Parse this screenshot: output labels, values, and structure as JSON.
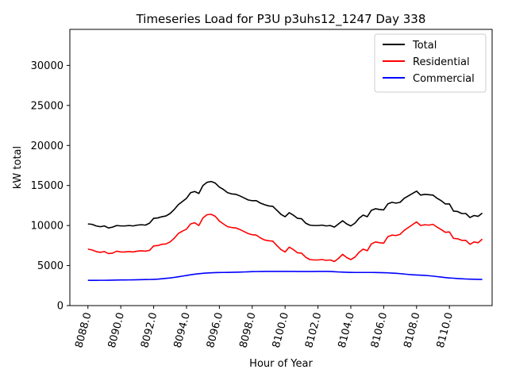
{
  "chart_data": {
    "type": "line",
    "title": "Timeseries Load for P3U p3uhs12_1247  Day 338",
    "xlabel": "Hour of Year",
    "ylabel": "kW total",
    "xlim": [
      8086.9,
      8112.6
    ],
    "ylim": [
      0,
      34500
    ],
    "xticks": [
      8088,
      8090,
      8092,
      8094,
      8096,
      8098,
      8100,
      8102,
      8104,
      8106,
      8108,
      8110
    ],
    "xtick_labels": [
      "8088.0",
      "8090.0",
      "8092.0",
      "8094.0",
      "8096.0",
      "8098.0",
      "8100.0",
      "8102.0",
      "8104.0",
      "8106.0",
      "8108.0",
      "8110.0"
    ],
    "yticks": [
      0,
      5000,
      10000,
      15000,
      20000,
      25000,
      30000
    ],
    "ytick_labels": [
      "0",
      "5000",
      "10000",
      "15000",
      "20000",
      "25000",
      "30000"
    ],
    "legend_position": "top-right",
    "x_start": 8088,
    "x_step": 0.25,
    "series": [
      {
        "name": "Total",
        "color": "#000000",
        "values": [
          10200,
          10150,
          9950,
          9850,
          9950,
          9700,
          9800,
          10000,
          9950,
          9950,
          10000,
          9950,
          10050,
          10100,
          10050,
          10300,
          10900,
          10950,
          11100,
          11200,
          11500,
          12000,
          12600,
          13000,
          13400,
          14100,
          14250,
          14000,
          15000,
          15400,
          15500,
          15300,
          14800,
          14500,
          14100,
          13950,
          13900,
          13700,
          13450,
          13200,
          13100,
          13100,
          12800,
          12600,
          12450,
          12400,
          11900,
          11400,
          11100,
          11600,
          11300,
          10900,
          10850,
          10300,
          10050,
          10000,
          10000,
          10050,
          9950,
          10000,
          9800,
          10200,
          10600,
          10200,
          9950,
          10300,
          10900,
          11300,
          11100,
          11900,
          12100,
          12000,
          11950,
          12700,
          12900,
          12800,
          12900,
          13400,
          13700,
          14000,
          14300,
          13800,
          13900,
          13850,
          13800,
          13400,
          13100,
          12700,
          12700,
          11800,
          11750,
          11500,
          11500,
          11000,
          11250,
          11150,
          11550
        ]
      },
      {
        "name": "Residential",
        "color": "#ff0000",
        "values": [
          7050,
          6950,
          6750,
          6650,
          6750,
          6500,
          6550,
          6800,
          6700,
          6700,
          6750,
          6700,
          6800,
          6850,
          6800,
          6900,
          7450,
          7500,
          7650,
          7700,
          7950,
          8400,
          9000,
          9300,
          9550,
          10200,
          10350,
          10000,
          10950,
          11350,
          11400,
          11150,
          10550,
          10200,
          9850,
          9750,
          9700,
          9500,
          9250,
          9000,
          8850,
          8800,
          8450,
          8200,
          8100,
          8050,
          7500,
          7000,
          6700,
          7300,
          7000,
          6600,
          6550,
          6050,
          5750,
          5700,
          5700,
          5750,
          5650,
          5700,
          5500,
          5900,
          6400,
          6000,
          5750,
          6050,
          6650,
          7050,
          6850,
          7700,
          7950,
          7850,
          7800,
          8600,
          8800,
          8750,
          8900,
          9400,
          9750,
          10100,
          10450,
          10000,
          10100,
          10050,
          10150,
          9800,
          9500,
          9150,
          9200,
          8400,
          8350,
          8150,
          8150,
          7650,
          7950,
          7850,
          8300
        ]
      },
      {
        "name": "Commercial",
        "color": "#0000ff",
        "values": [
          3150,
          3150,
          3150,
          3160,
          3160,
          3170,
          3180,
          3190,
          3200,
          3200,
          3210,
          3220,
          3230,
          3240,
          3250,
          3260,
          3280,
          3300,
          3350,
          3400,
          3450,
          3520,
          3600,
          3680,
          3760,
          3850,
          3920,
          3980,
          4030,
          4070,
          4100,
          4120,
          4130,
          4140,
          4150,
          4160,
          4170,
          4180,
          4200,
          4220,
          4240,
          4250,
          4260,
          4270,
          4270,
          4270,
          4270,
          4270,
          4270,
          4270,
          4270,
          4260,
          4260,
          4260,
          4260,
          4260,
          4270,
          4270,
          4270,
          4260,
          4230,
          4200,
          4180,
          4160,
          4150,
          4140,
          4140,
          4140,
          4140,
          4140,
          4130,
          4120,
          4110,
          4090,
          4060,
          4030,
          3990,
          3940,
          3890,
          3850,
          3820,
          3800,
          3770,
          3730,
          3680,
          3620,
          3560,
          3500,
          3450,
          3420,
          3380,
          3350,
          3320,
          3300,
          3290,
          3280,
          3270
        ]
      }
    ]
  }
}
